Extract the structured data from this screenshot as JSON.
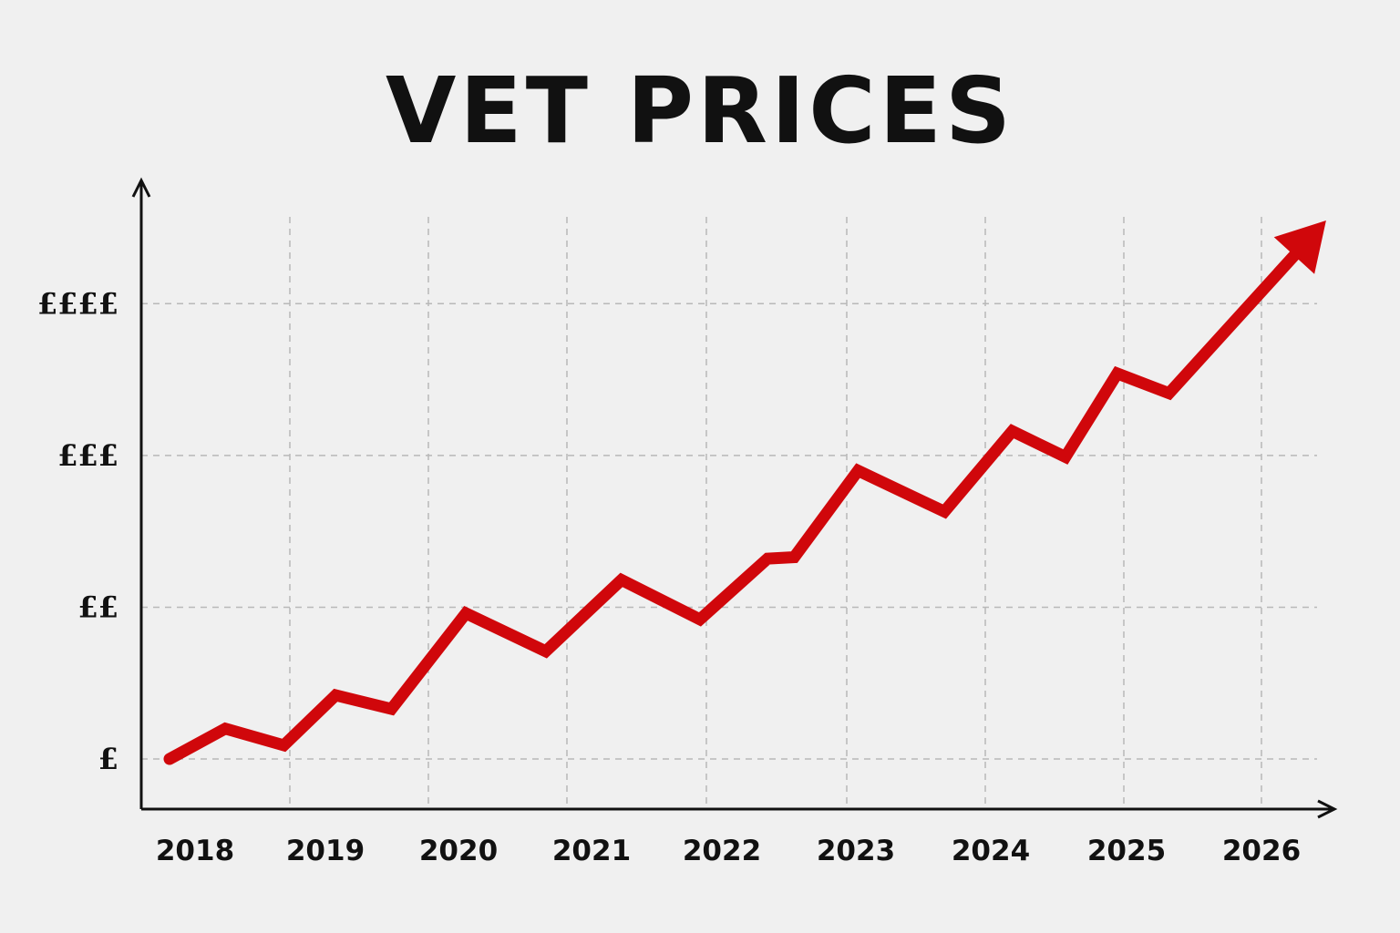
{
  "chart_data": {
    "type": "line",
    "title": "VET PRICES",
    "xlabel": "",
    "ylabel": "",
    "x_tick_labels": [
      "2018",
      "2019",
      "2020",
      "2021",
      "2022",
      "2023",
      "2024",
      "2025",
      "2026"
    ],
    "y_tick_labels": [
      "£",
      "££",
      "£££",
      "££££"
    ],
    "y_tick_values": [
      1,
      2,
      3,
      4
    ],
    "xlim": [
      2017.8,
      2026.55
    ],
    "ylim": [
      0.67,
      4.8
    ],
    "grid": true,
    "legend": "none",
    "line_color": "#d0070b",
    "trend_arrow": true,
    "series": [
      {
        "x": [
          2017.8,
          2018.22,
          2018.66,
          2019.05,
          2019.47,
          2020.03,
          2020.63,
          2021.2,
          2021.79,
          2022.3,
          2022.5,
          2022.98,
          2023.63,
          2024.14,
          2024.54,
          2024.93,
          2025.32,
          2026.4
        ],
        "values": [
          1.0,
          1.2,
          1.09,
          1.42,
          1.33,
          1.96,
          1.71,
          2.18,
          1.92,
          2.32,
          2.33,
          2.9,
          2.63,
          3.16,
          2.99,
          3.54,
          3.41,
          4.45
        ]
      }
    ]
  }
}
